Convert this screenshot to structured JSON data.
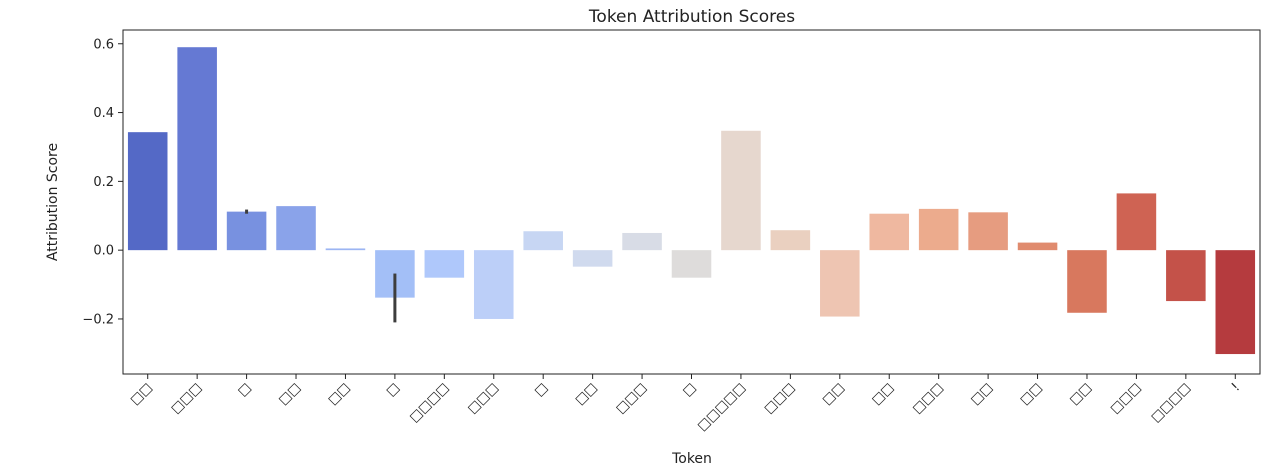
{
  "chart_data": {
    "type": "bar",
    "title": "Token Attribution Scores",
    "xlabel": "Token",
    "ylabel": "Attribution Score",
    "ylim": [
      -0.36,
      0.64
    ],
    "yticks": [
      -0.2,
      0.0,
      0.2,
      0.4,
      0.6
    ],
    "ytick_labels": [
      "−0.2",
      "0.0",
      "0.2",
      "0.4",
      "0.6"
    ],
    "grid": false,
    "categories": [
      "□□",
      "□□□",
      "□",
      "□□",
      "□□",
      "□",
      "□□□□",
      "□□□",
      "□",
      "□□",
      "□□□",
      "□",
      "□□□□□",
      "□□□",
      "□□",
      "□□",
      "□□□",
      "□□",
      "□□",
      "□□",
      "□□□",
      "□□□□",
      "!"
    ],
    "values": [
      0.343,
      0.59,
      0.112,
      0.128,
      0.005,
      -0.138,
      -0.08,
      -0.2,
      0.055,
      -0.048,
      0.05,
      -0.08,
      0.347,
      0.058,
      -0.193,
      0.106,
      0.12,
      0.11,
      0.022,
      -0.182,
      0.165,
      -0.148,
      -0.302
    ],
    "error_bars": [
      null,
      null,
      [
        0.106,
        0.118
      ],
      null,
      null,
      [
        -0.21,
        -0.068
      ],
      null,
      null,
      null,
      null,
      null,
      null,
      null,
      null,
      null,
      null,
      null,
      null,
      null,
      null,
      null,
      null,
      null
    ],
    "colors": [
      "#5469c6",
      "#6579d3",
      "#7891e0",
      "#8aa3ea",
      "#9cb5f3",
      "#a3bff7",
      "#afc8fb",
      "#bccff8",
      "#c7d6f3",
      "#d0daee",
      "#d8dce6",
      "#dedcdb",
      "#e6d7ce",
      "#ead0c0",
      "#eec5b2",
      "#efb8a0",
      "#ecab8d",
      "#e69c80",
      "#e08b6e",
      "#d8785e",
      "#cf6353",
      "#c45249",
      "#b53b3e"
    ]
  }
}
